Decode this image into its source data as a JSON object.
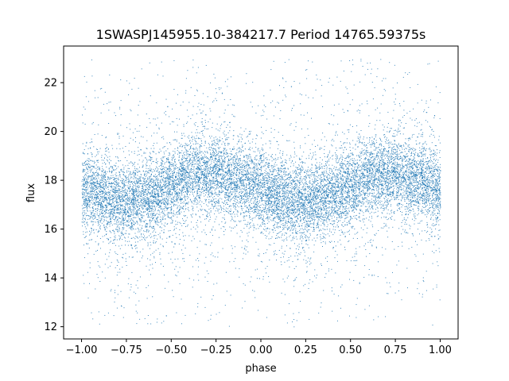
{
  "chart_data": {
    "type": "scatter",
    "title": "1SWASPJ145955.10-384217.7 Period 14765.59375s",
    "xlabel": "phase",
    "ylabel": "flux",
    "xlim": [
      -1.1,
      1.1
    ],
    "ylim": [
      11.5,
      23.5
    ],
    "x_ticks": [
      -1.0,
      -0.75,
      -0.5,
      -0.25,
      0.0,
      0.25,
      0.5,
      0.75,
      1.0
    ],
    "x_tick_labels": [
      "−1.00",
      "−0.75",
      "−0.50",
      "−0.25",
      "0.00",
      "0.25",
      "0.50",
      "0.75",
      "1.00"
    ],
    "y_ticks": [
      12,
      14,
      16,
      18,
      20,
      22
    ],
    "y_tick_labels": [
      "12",
      "14",
      "16",
      "18",
      "20",
      "22"
    ],
    "grid": false,
    "legend": "none",
    "marker_color": "#1f77b4",
    "series": [
      {
        "phase_min": -1.0,
        "phase_max": 1.0,
        "mean_flux_curve": {
          "phase": [
            -1.0,
            -0.875,
            -0.75,
            -0.625,
            -0.5,
            -0.375,
            -0.25,
            -0.125,
            0.0,
            0.125,
            0.25,
            0.375,
            0.5,
            0.625,
            0.75,
            0.875,
            1.0
          ],
          "flux": [
            17.6,
            17.3,
            17.1,
            17.35,
            17.8,
            18.2,
            18.3,
            18.0,
            17.6,
            17.3,
            17.1,
            17.35,
            17.8,
            18.2,
            18.3,
            18.0,
            17.6
          ]
        },
        "core_spread": 0.8,
        "flux_range": [
          12.0,
          23.0
        ]
      }
    ]
  }
}
